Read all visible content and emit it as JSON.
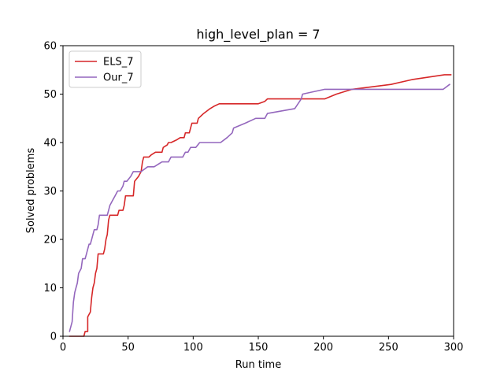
{
  "chart_data": {
    "type": "line",
    "title": "high_level_plan = 7",
    "xlabel": "Run time",
    "ylabel": "Solved problems",
    "xlim": [
      0,
      300
    ],
    "ylim": [
      0,
      60
    ],
    "xticks": [
      0,
      50,
      100,
      150,
      200,
      250,
      300
    ],
    "yticks": [
      0,
      10,
      20,
      30,
      40,
      50,
      60
    ],
    "grid": false,
    "legend_position": "top-left",
    "series": [
      {
        "name": "ELS_7",
        "color": "#d62728",
        "points": [
          [
            5,
            0
          ],
          [
            16,
            0
          ],
          [
            17,
            1
          ],
          [
            19,
            1
          ],
          [
            19,
            4
          ],
          [
            21,
            5
          ],
          [
            22,
            8
          ],
          [
            23,
            10
          ],
          [
            24,
            11
          ],
          [
            25,
            13
          ],
          [
            26,
            14
          ],
          [
            27,
            17
          ],
          [
            31,
            17
          ],
          [
            32,
            18
          ],
          [
            33,
            20
          ],
          [
            34,
            21
          ],
          [
            35,
            24
          ],
          [
            36,
            25
          ],
          [
            42,
            25
          ],
          [
            43,
            26
          ],
          [
            46,
            26
          ],
          [
            47,
            27
          ],
          [
            48,
            29
          ],
          [
            54,
            29
          ],
          [
            55,
            32
          ],
          [
            58,
            33
          ],
          [
            60,
            34
          ],
          [
            61,
            36
          ],
          [
            62,
            37
          ],
          [
            66,
            37
          ],
          [
            68,
            37.5
          ],
          [
            71,
            38
          ],
          [
            76,
            38
          ],
          [
            77,
            39
          ],
          [
            80,
            39.5
          ],
          [
            81,
            40
          ],
          [
            83,
            40
          ],
          [
            87,
            40.5
          ],
          [
            90,
            41
          ],
          [
            93,
            41
          ],
          [
            94,
            42
          ],
          [
            97,
            42
          ],
          [
            98,
            43
          ],
          [
            99,
            44
          ],
          [
            103,
            44
          ],
          [
            104,
            45
          ],
          [
            108,
            46
          ],
          [
            113,
            47
          ],
          [
            116,
            47.5
          ],
          [
            120,
            48
          ],
          [
            150,
            48
          ],
          [
            155,
            48.5
          ],
          [
            157,
            49
          ],
          [
            201,
            49
          ],
          [
            210,
            50
          ],
          [
            222,
            51
          ],
          [
            252,
            52
          ],
          [
            268,
            53
          ],
          [
            293,
            54
          ],
          [
            298,
            54
          ]
        ]
      },
      {
        "name": "Our_7",
        "color": "#9467bd",
        "points": [
          [
            5,
            1
          ],
          [
            7,
            3
          ],
          [
            8,
            7
          ],
          [
            9,
            9
          ],
          [
            10,
            10
          ],
          [
            11,
            11
          ],
          [
            12,
            13
          ],
          [
            14,
            14
          ],
          [
            15,
            16
          ],
          [
            17,
            16
          ],
          [
            18,
            17
          ],
          [
            19,
            18
          ],
          [
            20,
            19
          ],
          [
            21,
            19
          ],
          [
            22,
            20
          ],
          [
            23,
            21
          ],
          [
            24,
            22
          ],
          [
            26,
            22
          ],
          [
            27,
            23
          ],
          [
            28,
            25
          ],
          [
            34,
            25
          ],
          [
            35,
            26
          ],
          [
            36,
            27
          ],
          [
            38,
            28
          ],
          [
            40,
            29
          ],
          [
            42,
            30
          ],
          [
            44,
            30
          ],
          [
            46,
            31
          ],
          [
            47,
            32
          ],
          [
            49,
            32
          ],
          [
            52,
            33
          ],
          [
            54,
            34
          ],
          [
            60,
            34
          ],
          [
            65,
            35
          ],
          [
            70,
            35
          ],
          [
            76,
            36
          ],
          [
            81,
            36
          ],
          [
            83,
            37
          ],
          [
            92,
            37
          ],
          [
            94,
            38
          ],
          [
            96,
            38
          ],
          [
            98,
            39
          ],
          [
            102,
            39
          ],
          [
            105,
            40
          ],
          [
            121,
            40
          ],
          [
            126,
            41
          ],
          [
            130,
            42
          ],
          [
            131,
            43
          ],
          [
            140,
            44
          ],
          [
            148,
            45
          ],
          [
            155,
            45
          ],
          [
            157,
            46
          ],
          [
            178,
            47
          ],
          [
            183,
            49
          ],
          [
            184,
            50
          ],
          [
            201,
            51
          ],
          [
            223,
            51
          ],
          [
            228,
            51
          ],
          [
            292,
            51
          ],
          [
            297,
            52
          ]
        ]
      }
    ]
  }
}
